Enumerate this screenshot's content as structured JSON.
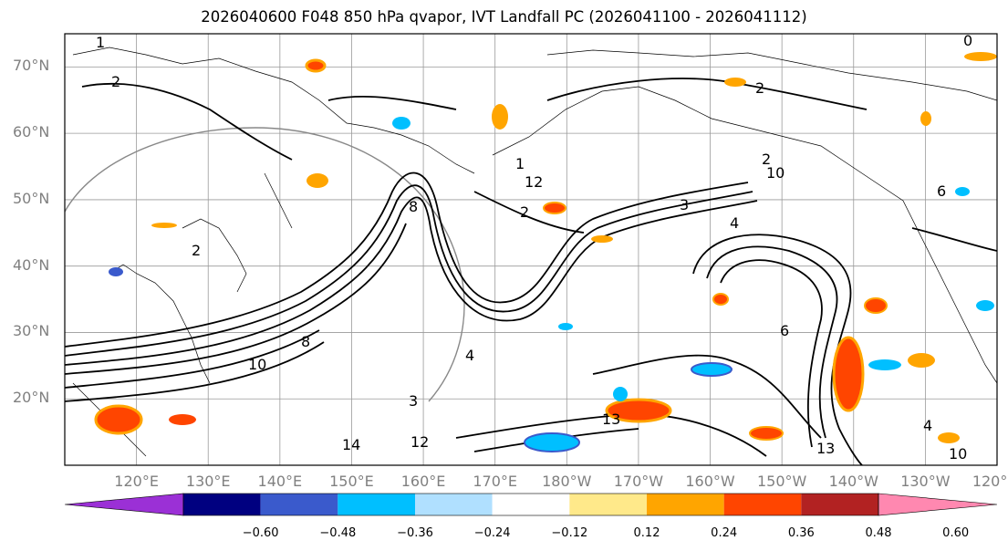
{
  "title": "2026040600 F048 850 hPa qvapor, IVT Landfall PC (2026041100 - 2026041112)",
  "map": {
    "projection": "PlateCarree",
    "lon_range": [
      110,
      240
    ],
    "lat_range": [
      10,
      75
    ],
    "lat_labels": [
      "70°N",
      "60°N",
      "50°N",
      "40°N",
      "30°N",
      "20°N"
    ],
    "lon_labels": [
      "120°E",
      "130°E",
      "140°E",
      "150°E",
      "160°E",
      "170°E",
      "180°W",
      "170°W",
      "160°W",
      "150°W",
      "140°W",
      "130°W",
      "120°W"
    ],
    "gridlines": true,
    "contour_labels": [
      "1",
      "2",
      "0",
      "2",
      "8",
      "8",
      "3",
      "4",
      "2",
      "6",
      "10",
      "14",
      "13",
      "3",
      "2",
      "6",
      "4",
      "10",
      "12",
      "13",
      "4",
      "10",
      "12",
      "1",
      "2"
    ]
  },
  "colorbar": {
    "ticks": [
      "−0.60",
      "−0.48",
      "−0.36",
      "−0.24",
      "−0.12",
      "0.12",
      "0.24",
      "0.36",
      "0.48",
      "0.60"
    ],
    "colors": [
      "#9b30d6",
      "#000080",
      "#3a5acc",
      "#00bfff",
      "#b0e0ff",
      "#ffffff",
      "#ffe98a",
      "#ffa500",
      "#ff4500",
      "#b22222",
      "#ff88b0"
    ],
    "extend": "both"
  }
}
